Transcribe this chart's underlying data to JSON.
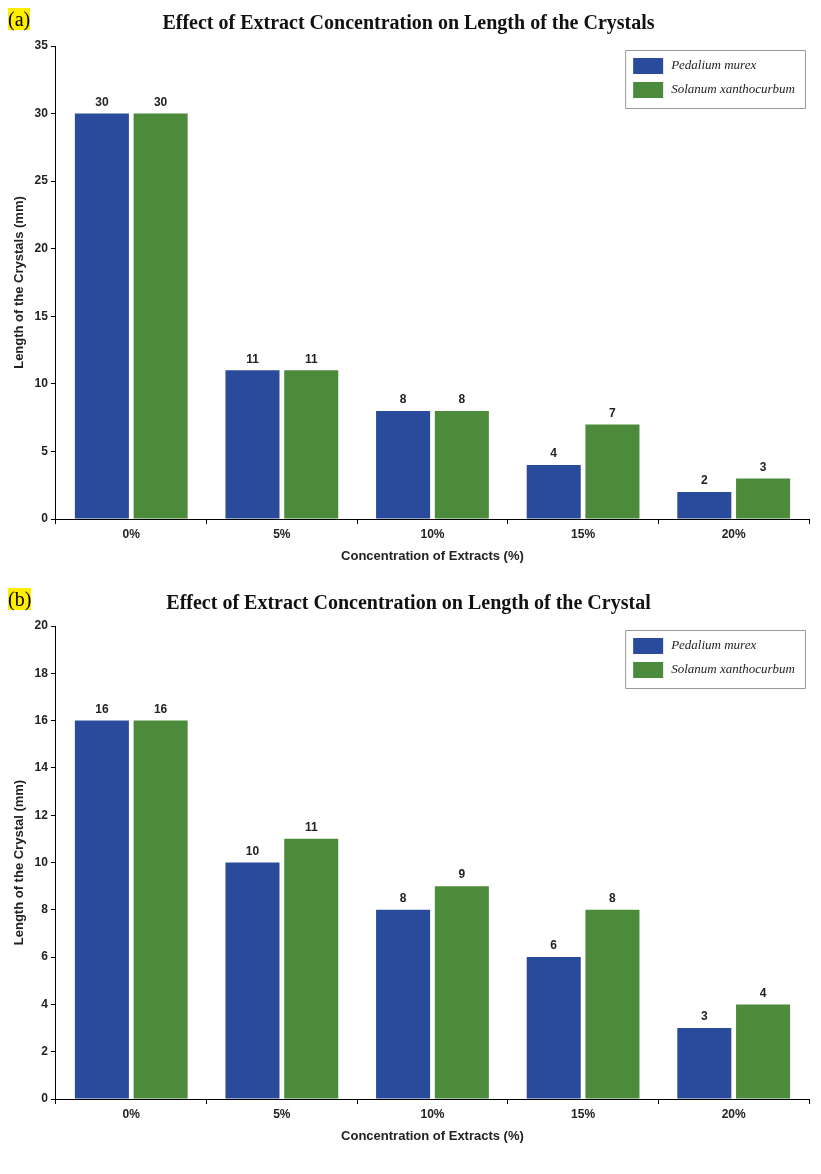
{
  "chart_data": [
    {
      "type": "bar",
      "title": "Effect of Extract Concentration on Length of the Crystals",
      "xlabel": "Concentration of Extracts (%)",
      "ylabel": "Length of the Crystals (mm)",
      "annotations": [
        "(a)"
      ],
      "categories": [
        "0%",
        "5%",
        "10%",
        "15%",
        "20%"
      ],
      "series": [
        {
          "name": "Pedalium murex",
          "color": "#2a4b9b",
          "values": [
            30,
            11,
            8,
            4,
            2
          ]
        },
        {
          "name": "Solanum xanthocurbum",
          "color": "#4b8b3b",
          "values": [
            30,
            11,
            8,
            7,
            3
          ]
        }
      ],
      "ylim": [
        0,
        35
      ],
      "yticks": [
        0,
        5,
        10,
        15,
        20,
        25,
        30,
        35
      ],
      "data_labels": true,
      "legend": "top right"
    },
    {
      "type": "bar",
      "title": "Effect of Extract Concentration on Length of the Crystal",
      "xlabel": "Concentration of Extracts (%)",
      "ylabel": "Length of the Crystal (mm)",
      "annotations": [
        "(b)"
      ],
      "categories": [
        "0%",
        "5%",
        "10%",
        "15%",
        "20%"
      ],
      "series": [
        {
          "name": "Pedalium murex",
          "color": "#2a4b9b",
          "values": [
            16,
            10,
            8,
            6,
            3
          ]
        },
        {
          "name": "Solanum xanthocurbum",
          "color": "#4b8b3b",
          "values": [
            16,
            11,
            9,
            8,
            4
          ]
        }
      ],
      "ylim": [
        0,
        20
      ],
      "yticks": [
        0,
        2,
        4,
        6,
        8,
        10,
        12,
        14,
        16,
        18,
        20
      ],
      "data_labels": true,
      "legend": "top right"
    }
  ]
}
